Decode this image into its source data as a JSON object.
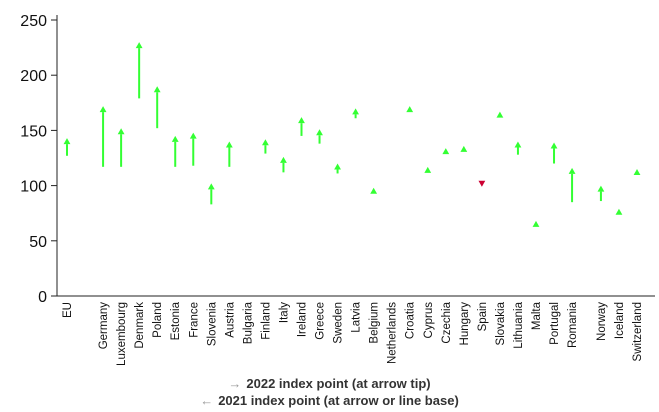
{
  "chart_data": {
    "type": "arrow",
    "title": "",
    "xlabel": "",
    "ylabel": "",
    "ylim": [
      0,
      250
    ],
    "yticks": [
      0,
      50,
      100,
      150,
      200,
      250
    ],
    "grid": false,
    "colors": {
      "increase": "#33ff33",
      "decrease": "#cc0033",
      "legend_arrow": "#999999",
      "axis": "#222222"
    },
    "categories": [
      "EU",
      "Germany",
      "Luxembourg",
      "Denmark",
      "Poland",
      "Estonia",
      "France",
      "Slovenia",
      "Austria",
      "Bulgaria",
      "Finland",
      "Italy",
      "Ireland",
      "Greece",
      "Sweden",
      "Latvia",
      "Belgium",
      "Netherlands",
      "Croatia",
      "Cyprus",
      "Czechia",
      "Hungary",
      "Spain",
      "Slovakia",
      "Lithuania",
      "Malta",
      "Portugal",
      "Romania",
      "Norway",
      "Iceland",
      "Switzerland"
    ],
    "values_2021": [
      127,
      117,
      117,
      179,
      152,
      117,
      118,
      83,
      117,
      null,
      129,
      112,
      145,
      138,
      111,
      161,
      96,
      null,
      170,
      116,
      131,
      133,
      100,
      164,
      128,
      67,
      120,
      85,
      86,
      77,
      113
    ],
    "values_2022": [
      143,
      172,
      152,
      230,
      190,
      145,
      148,
      102,
      140,
      null,
      142,
      126,
      162,
      151,
      120,
      170,
      98,
      null,
      172,
      117,
      134,
      136,
      99,
      167,
      140,
      68,
      139,
      116,
      100,
      79,
      115
    ]
  },
  "legend": {
    "arrow_glyph": "→",
    "arrow_glyph_2": "←",
    "line1": "2022 index point (at arrow tip)",
    "line2": "2021 index point (at arrow or line base)"
  }
}
